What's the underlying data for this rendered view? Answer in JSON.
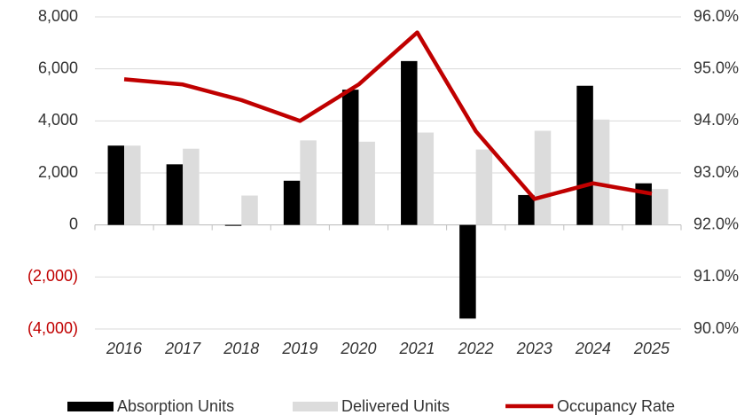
{
  "chart_data": {
    "type": "bar-line",
    "categories": [
      "2016",
      "2017",
      "2018",
      "2019",
      "2020",
      "2021",
      "2022",
      "2023",
      "2024",
      "2025"
    ],
    "series": [
      {
        "name": "Absorption Units",
        "type": "bar",
        "color": "#000000",
        "values": [
          3050,
          2330,
          -30,
          1700,
          5200,
          6300,
          -3600,
          1150,
          5350,
          1600
        ]
      },
      {
        "name": "Delivered Units",
        "type": "bar",
        "color": "#dcdcdc",
        "values": [
          3050,
          2930,
          1130,
          3250,
          3200,
          3550,
          2900,
          3620,
          4050,
          1380
        ]
      },
      {
        "name": "Occupancy Rate",
        "type": "line",
        "axis": "y2",
        "color": "#c00000",
        "values": [
          94.8,
          94.7,
          94.4,
          94.0,
          94.7,
          95.7,
          93.8,
          92.5,
          92.8,
          92.6
        ]
      }
    ],
    "ylim": [
      -4000,
      8000
    ],
    "yticks": [
      {
        "value": -4000,
        "label": "(4,000)"
      },
      {
        "value": -2000,
        "label": "(2,000)"
      },
      0,
      {
        "value": 2000,
        "label": "2,000"
      },
      {
        "value": 4000,
        "label": "4,000"
      },
      {
        "value": 6000,
        "label": "6,000"
      },
      {
        "value": 8000,
        "label": "8,000"
      }
    ],
    "negative_tick_color": "#c00000",
    "y2lim": [
      90,
      96
    ],
    "y2ticks": [
      {
        "value": 90,
        "label": "90.0%"
      },
      {
        "value": 91,
        "label": "91.0%"
      },
      {
        "value": 92,
        "label": "92.0%"
      },
      {
        "value": 93,
        "label": "93.0%"
      },
      {
        "value": 94,
        "label": "94.0%"
      },
      {
        "value": 95,
        "label": "95.0%"
      },
      {
        "value": 96,
        "label": "96.0%"
      }
    ],
    "grid": true,
    "legend": "bottom"
  }
}
